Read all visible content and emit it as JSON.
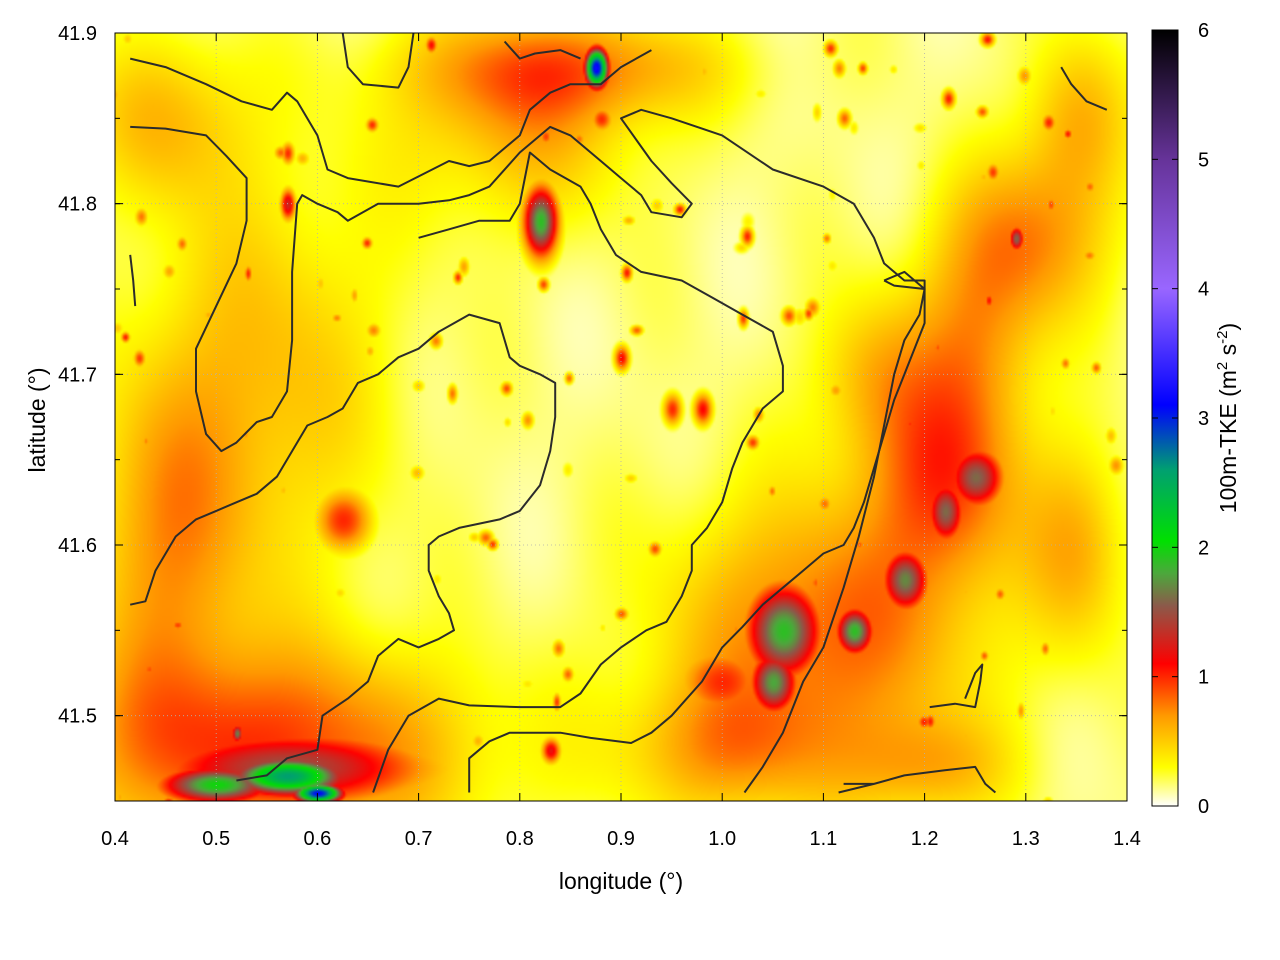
{
  "chart_data": {
    "type": "heatmap",
    "title": "",
    "xlabel": "longitude (°)",
    "ylabel": "latitude (°)",
    "xlim": [
      0.4,
      1.4
    ],
    "ylim": [
      41.45,
      41.9
    ],
    "xticks": [
      "0.4",
      "0.5",
      "0.6",
      "0.7",
      "0.8",
      "0.9",
      "1.0",
      "1.1",
      "1.2",
      "1.3",
      "1.4"
    ],
    "xtick_values": [
      0.4,
      0.5,
      0.6,
      0.7,
      0.8,
      0.9,
      1.0,
      1.1,
      1.2,
      1.3,
      1.4
    ],
    "yticks": [
      "41.5",
      "41.6",
      "41.7",
      "41.8",
      "41.9"
    ],
    "ytick_values": [
      41.5,
      41.6,
      41.7,
      41.8,
      41.9
    ],
    "grid": true,
    "colorbar": {
      "label": "100m-TKE (m² s⁻²)",
      "label_main": "100m-TKE (m",
      "label_sup1": "2",
      "label_mid": " s",
      "label_sup2": "-2",
      "label_end": ")",
      "range": [
        0,
        6
      ],
      "ticks": [
        "0",
        "1",
        "2",
        "3",
        "4",
        "5",
        "6"
      ],
      "tick_values": [
        0,
        1,
        2,
        3,
        4,
        5,
        6
      ],
      "stops": [
        {
          "v": 0.0,
          "color": "#ffffff"
        },
        {
          "v": 0.3,
          "color": "#ffff00"
        },
        {
          "v": 0.7,
          "color": "#ff9900"
        },
        {
          "v": 1.1,
          "color": "#ff0000"
        },
        {
          "v": 1.55,
          "color": "#8b5a4a"
        },
        {
          "v": 1.8,
          "color": "#4ca83c"
        },
        {
          "v": 2.05,
          "color": "#00e000"
        },
        {
          "v": 2.6,
          "color": "#00a070"
        },
        {
          "v": 3.1,
          "color": "#0000ff"
        },
        {
          "v": 4.0,
          "color": "#9966ff"
        },
        {
          "v": 5.0,
          "color": "#663399"
        },
        {
          "v": 6.0,
          "color": "#000000"
        }
      ]
    },
    "hotspots": [
      {
        "lon": 0.875,
        "lat": 41.88,
        "peak": 3.2,
        "rlon": 0.012,
        "rlat": 0.012
      },
      {
        "lon": 0.82,
        "lat": 41.79,
        "peak": 1.9,
        "rlon": 0.018,
        "rlat": 0.022
      },
      {
        "lon": 0.625,
        "lat": 41.615,
        "peak": 1.0,
        "rlon": 0.03,
        "rlat": 0.02
      },
      {
        "lon": 0.57,
        "lat": 41.8,
        "peak": 1.3,
        "rlon": 0.008,
        "rlat": 0.01
      },
      {
        "lon": 0.57,
        "lat": 41.83,
        "peak": 1.0,
        "rlon": 0.007,
        "rlat": 0.007
      },
      {
        "lon": 1.06,
        "lat": 41.55,
        "peak": 1.9,
        "rlon": 0.04,
        "rlat": 0.03
      },
      {
        "lon": 1.05,
        "lat": 41.52,
        "peak": 1.8,
        "rlon": 0.025,
        "rlat": 0.02
      },
      {
        "lon": 1.13,
        "lat": 41.55,
        "peak": 1.9,
        "rlon": 0.02,
        "rlat": 0.015
      },
      {
        "lon": 1.18,
        "lat": 41.58,
        "peak": 1.7,
        "rlon": 0.025,
        "rlat": 0.02
      },
      {
        "lon": 1.22,
        "lat": 41.62,
        "peak": 1.6,
        "rlon": 0.02,
        "rlat": 0.02
      },
      {
        "lon": 1.25,
        "lat": 41.64,
        "peak": 1.6,
        "rlon": 0.03,
        "rlat": 0.02
      },
      {
        "lon": 1.29,
        "lat": 41.78,
        "peak": 1.6,
        "rlon": 0.008,
        "rlat": 0.008
      },
      {
        "lon": 0.9,
        "lat": 41.71,
        "peak": 1.1,
        "rlon": 0.008,
        "rlat": 0.008
      },
      {
        "lon": 0.98,
        "lat": 41.68,
        "peak": 1.1,
        "rlon": 0.01,
        "rlat": 0.01
      },
      {
        "lon": 0.95,
        "lat": 41.68,
        "peak": 1.0,
        "rlon": 0.01,
        "rlat": 0.01
      },
      {
        "lon": 0.88,
        "lat": 41.85,
        "peak": 1.0,
        "rlon": 0.012,
        "rlat": 0.008
      },
      {
        "lon": 0.57,
        "lat": 41.465,
        "peak": 2.6,
        "rlon": 0.06,
        "rlat": 0.012
      },
      {
        "lon": 0.5,
        "lat": 41.46,
        "peak": 2.0,
        "rlon": 0.06,
        "rlat": 0.012
      },
      {
        "lon": 0.6,
        "lat": 41.455,
        "peak": 3.1,
        "rlon": 0.025,
        "rlat": 0.006
      },
      {
        "lon": 0.57,
        "lat": 41.47,
        "peak": 1.5,
        "rlon": 0.15,
        "rlat": 0.025
      },
      {
        "lon": 0.52,
        "lat": 41.49,
        "peak": 1.7,
        "rlon": 0.006,
        "rlat": 0.006
      },
      {
        "lon": 0.83,
        "lat": 41.48,
        "peak": 1.2,
        "rlon": 0.01,
        "rlat": 0.008
      },
      {
        "lon": 1.0,
        "lat": 41.52,
        "peak": 1.0,
        "rlon": 0.05,
        "rlat": 0.025
      }
    ],
    "warm_regions": [
      {
        "lon": 0.55,
        "lat": 41.48,
        "level": 0.8,
        "rlon": 0.2,
        "rlat": 0.06
      },
      {
        "lon": 1.1,
        "lat": 41.55,
        "level": 0.7,
        "rlon": 0.15,
        "rlat": 0.08
      },
      {
        "lon": 1.22,
        "lat": 41.64,
        "level": 0.7,
        "rlon": 0.07,
        "rlat": 0.06
      },
      {
        "lon": 1.3,
        "lat": 41.78,
        "level": 0.55,
        "rlon": 0.08,
        "rlat": 0.05
      },
      {
        "lon": 0.55,
        "lat": 41.7,
        "level": 0.4,
        "rlon": 0.12,
        "rlat": 0.12
      },
      {
        "lon": 0.45,
        "lat": 41.6,
        "level": 0.5,
        "rlon": 0.08,
        "rlat": 0.1
      },
      {
        "lon": 0.85,
        "lat": 41.88,
        "level": 0.5,
        "rlon": 0.15,
        "rlat": 0.03
      },
      {
        "lon": 0.8,
        "lat": 41.85,
        "level": 0.45,
        "rlon": 0.12,
        "rlat": 0.06
      },
      {
        "lon": 0.45,
        "lat": 41.85,
        "level": 0.4,
        "rlon": 0.08,
        "rlat": 0.05
      },
      {
        "lon": 1.35,
        "lat": 41.85,
        "level": 0.45,
        "rlon": 0.05,
        "rlat": 0.05
      },
      {
        "lon": 1.25,
        "lat": 41.72,
        "level": 0.45,
        "rlon": 0.06,
        "rlat": 0.06
      },
      {
        "lon": 1.15,
        "lat": 41.7,
        "level": 0.4,
        "rlon": 0.06,
        "rlat": 0.05
      },
      {
        "lon": 1.35,
        "lat": 41.6,
        "level": 0.45,
        "rlon": 0.05,
        "rlat": 0.06
      },
      {
        "lon": 1.0,
        "lat": 41.48,
        "level": 0.45,
        "rlon": 0.1,
        "rlat": 0.04
      },
      {
        "lon": 1.2,
        "lat": 41.47,
        "level": 0.4,
        "rlon": 0.08,
        "rlat": 0.03
      }
    ],
    "contours": [
      [
        [
          0.415,
          41.885
        ],
        [
          0.45,
          41.88
        ],
        [
          0.49,
          41.87
        ],
        [
          0.525,
          41.86
        ],
        [
          0.555,
          41.855
        ],
        [
          0.57,
          41.865
        ],
        [
          0.58,
          41.86
        ],
        [
          0.6,
          41.84
        ],
        [
          0.61,
          41.82
        ],
        [
          0.63,
          41.815
        ],
        [
          0.68,
          41.81
        ],
        [
          0.73,
          41.825
        ],
        [
          0.75,
          41.822
        ],
        [
          0.77,
          41.825
        ],
        [
          0.8,
          41.84
        ],
        [
          0.81,
          41.855
        ],
        [
          0.83,
          41.865
        ],
        [
          0.85,
          41.87
        ],
        [
          0.88,
          41.87
        ],
        [
          0.9,
          41.88
        ],
        [
          0.93,
          41.89
        ]
      ],
      [
        [
          0.625,
          41.9
        ],
        [
          0.63,
          41.88
        ],
        [
          0.645,
          41.87
        ],
        [
          0.68,
          41.868
        ],
        [
          0.69,
          41.88
        ],
        [
          0.695,
          41.9
        ]
      ],
      [
        [
          0.785,
          41.895
        ],
        [
          0.8,
          41.885
        ],
        [
          0.815,
          41.888
        ],
        [
          0.84,
          41.89
        ],
        [
          0.86,
          41.885
        ]
      ],
      [
        [
          0.415,
          41.845
        ],
        [
          0.45,
          41.844
        ],
        [
          0.49,
          41.84
        ],
        [
          0.51,
          41.828
        ],
        [
          0.53,
          41.815
        ],
        [
          0.53,
          41.79
        ],
        [
          0.52,
          41.765
        ],
        [
          0.5,
          41.74
        ],
        [
          0.48,
          41.715
        ],
        [
          0.48,
          41.69
        ],
        [
          0.49,
          41.665
        ],
        [
          0.505,
          41.655
        ],
        [
          0.52,
          41.66
        ],
        [
          0.54,
          41.672
        ],
        [
          0.555,
          41.675
        ],
        [
          0.57,
          41.69
        ],
        [
          0.575,
          41.72
        ],
        [
          0.575,
          41.76
        ],
        [
          0.58,
          41.8
        ],
        [
          0.585,
          41.805
        ],
        [
          0.6,
          41.8
        ],
        [
          0.62,
          41.795
        ],
        [
          0.63,
          41.79
        ],
        [
          0.66,
          41.8
        ],
        [
          0.7,
          41.8
        ],
        [
          0.73,
          41.802
        ],
        [
          0.75,
          41.805
        ],
        [
          0.77,
          41.81
        ],
        [
          0.8,
          41.83
        ],
        [
          0.83,
          41.845
        ],
        [
          0.85,
          41.84
        ],
        [
          0.88,
          41.825
        ],
        [
          0.9,
          41.815
        ],
        [
          0.92,
          41.805
        ],
        [
          0.93,
          41.795
        ],
        [
          0.96,
          41.792
        ],
        [
          0.97,
          41.8
        ],
        [
          0.95,
          41.812
        ],
        [
          0.93,
          41.825
        ],
        [
          0.9,
          41.85
        ],
        [
          0.92,
          41.855
        ],
        [
          0.95,
          41.85
        ],
        [
          1.0,
          41.84
        ],
        [
          1.05,
          41.82
        ],
        [
          1.1,
          41.81
        ],
        [
          1.13,
          41.8
        ],
        [
          1.15,
          41.78
        ],
        [
          1.16,
          41.765
        ],
        [
          1.18,
          41.755
        ],
        [
          1.2,
          41.755
        ],
        [
          1.2,
          41.73
        ],
        [
          1.19,
          41.715
        ],
        [
          1.18,
          41.7
        ],
        [
          1.17,
          41.685
        ],
        [
          1.16,
          41.665
        ],
        [
          1.15,
          41.645
        ],
        [
          1.14,
          41.625
        ],
        [
          1.13,
          41.61
        ],
        [
          1.12,
          41.6
        ],
        [
          1.1,
          41.595
        ],
        [
          1.08,
          41.585
        ],
        [
          1.06,
          41.575
        ],
        [
          1.04,
          41.565
        ],
        [
          1.02,
          41.552
        ],
        [
          1.0,
          41.54
        ],
        [
          0.99,
          41.53
        ],
        [
          0.98,
          41.52
        ],
        [
          0.965,
          41.51
        ],
        [
          0.95,
          41.5
        ],
        [
          0.93,
          41.49
        ],
        [
          0.91,
          41.484
        ],
        [
          0.87,
          41.487
        ],
        [
          0.84,
          41.49
        ],
        [
          0.79,
          41.49
        ],
        [
          0.77,
          41.485
        ],
        [
          0.75,
          41.475
        ],
        [
          0.75,
          41.455
        ]
      ],
      [
        [
          0.415,
          41.565
        ],
        [
          0.43,
          41.567
        ],
        [
          0.44,
          41.585
        ],
        [
          0.46,
          41.605
        ],
        [
          0.48,
          41.615
        ],
        [
          0.5,
          41.62
        ],
        [
          0.52,
          41.625
        ],
        [
          0.54,
          41.63
        ],
        [
          0.56,
          41.64
        ],
        [
          0.575,
          41.655
        ],
        [
          0.59,
          41.67
        ],
        [
          0.61,
          41.675
        ],
        [
          0.625,
          41.68
        ],
        [
          0.64,
          41.695
        ],
        [
          0.66,
          41.7
        ],
        [
          0.68,
          41.71
        ],
        [
          0.7,
          41.715
        ],
        [
          0.72,
          41.725
        ],
        [
          0.75,
          41.735
        ],
        [
          0.78,
          41.73
        ],
        [
          0.79,
          41.71
        ],
        [
          0.8,
          41.705
        ],
        [
          0.82,
          41.7
        ],
        [
          0.835,
          41.695
        ],
        [
          0.835,
          41.675
        ],
        [
          0.83,
          41.655
        ],
        [
          0.82,
          41.635
        ],
        [
          0.8,
          41.62
        ],
        [
          0.78,
          41.615
        ],
        [
          0.74,
          41.61
        ],
        [
          0.72,
          41.605
        ],
        [
          0.71,
          41.6
        ],
        [
          0.71,
          41.585
        ],
        [
          0.72,
          41.57
        ],
        [
          0.73,
          41.56
        ],
        [
          0.735,
          41.55
        ],
        [
          0.72,
          41.545
        ],
        [
          0.7,
          41.54
        ],
        [
          0.68,
          41.545
        ],
        [
          0.66,
          41.535
        ],
        [
          0.65,
          41.52
        ],
        [
          0.63,
          41.51
        ],
        [
          0.605,
          41.5
        ],
        [
          0.6,
          41.48
        ],
        [
          0.57,
          41.475
        ],
        [
          0.55,
          41.465
        ],
        [
          0.52,
          41.462
        ]
      ],
      [
        [
          0.655,
          41.455
        ],
        [
          0.67,
          41.48
        ],
        [
          0.69,
          41.5
        ],
        [
          0.72,
          41.51
        ],
        [
          0.75,
          41.506
        ],
        [
          0.8,
          41.505
        ],
        [
          0.84,
          41.505
        ],
        [
          0.86,
          41.513
        ],
        [
          0.88,
          41.53
        ],
        [
          0.9,
          41.54
        ],
        [
          0.925,
          41.55
        ],
        [
          0.945,
          41.555
        ],
        [
          0.96,
          41.57
        ],
        [
          0.97,
          41.585
        ],
        [
          0.97,
          41.6
        ],
        [
          0.985,
          41.61
        ],
        [
          1.0,
          41.625
        ],
        [
          1.01,
          41.645
        ],
        [
          1.02,
          41.66
        ],
        [
          1.04,
          41.68
        ],
        [
          1.06,
          41.69
        ],
        [
          1.06,
          41.705
        ],
        [
          1.05,
          41.725
        ],
        [
          1.02,
          41.735
        ],
        [
          0.99,
          41.745
        ],
        [
          0.96,
          41.755
        ],
        [
          0.92,
          41.76
        ],
        [
          0.895,
          41.77
        ],
        [
          0.88,
          41.785
        ],
        [
          0.87,
          41.8
        ],
        [
          0.86,
          41.81
        ],
        [
          0.83,
          41.82
        ],
        [
          0.81,
          41.83
        ],
        [
          0.8,
          41.8
        ],
        [
          0.79,
          41.79
        ],
        [
          0.76,
          41.79
        ],
        [
          0.73,
          41.785
        ],
        [
          0.7,
          41.78
        ]
      ],
      [
        [
          1.022,
          41.455
        ],
        [
          1.04,
          41.47
        ],
        [
          1.06,
          41.49
        ],
        [
          1.08,
          41.52
        ],
        [
          1.1,
          41.54
        ],
        [
          1.12,
          41.575
        ],
        [
          1.135,
          41.605
        ],
        [
          1.15,
          41.64
        ],
        [
          1.16,
          41.67
        ],
        [
          1.17,
          41.7
        ],
        [
          1.18,
          41.72
        ],
        [
          1.195,
          41.735
        ],
        [
          1.2,
          41.75
        ]
      ],
      [
        [
          1.115,
          41.455
        ],
        [
          1.15,
          41.46
        ],
        [
          1.18,
          41.465
        ],
        [
          1.22,
          41.468
        ],
        [
          1.25,
          41.47
        ],
        [
          1.26,
          41.46
        ],
        [
          1.27,
          41.455
        ]
      ],
      [
        [
          1.205,
          41.505
        ],
        [
          1.23,
          41.507
        ],
        [
          1.25,
          41.505
        ],
        [
          1.255,
          41.52
        ],
        [
          1.257,
          41.53
        ],
        [
          1.25,
          41.525
        ],
        [
          1.24,
          41.51
        ]
      ],
      [
        [
          1.335,
          41.88
        ],
        [
          1.345,
          41.87
        ],
        [
          1.36,
          41.86
        ],
        [
          1.38,
          41.855
        ]
      ],
      [
        [
          1.16,
          41.755
        ],
        [
          1.18,
          41.76
        ],
        [
          1.2,
          41.75
        ],
        [
          1.17,
          41.752
        ],
        [
          1.16,
          41.755
        ]
      ],
      [
        [
          0.415,
          41.77
        ],
        [
          0.418,
          41.755
        ],
        [
          0.42,
          41.74
        ]
      ],
      [
        [
          1.12,
          41.46
        ],
        [
          1.15,
          41.46
        ]
      ]
    ]
  }
}
